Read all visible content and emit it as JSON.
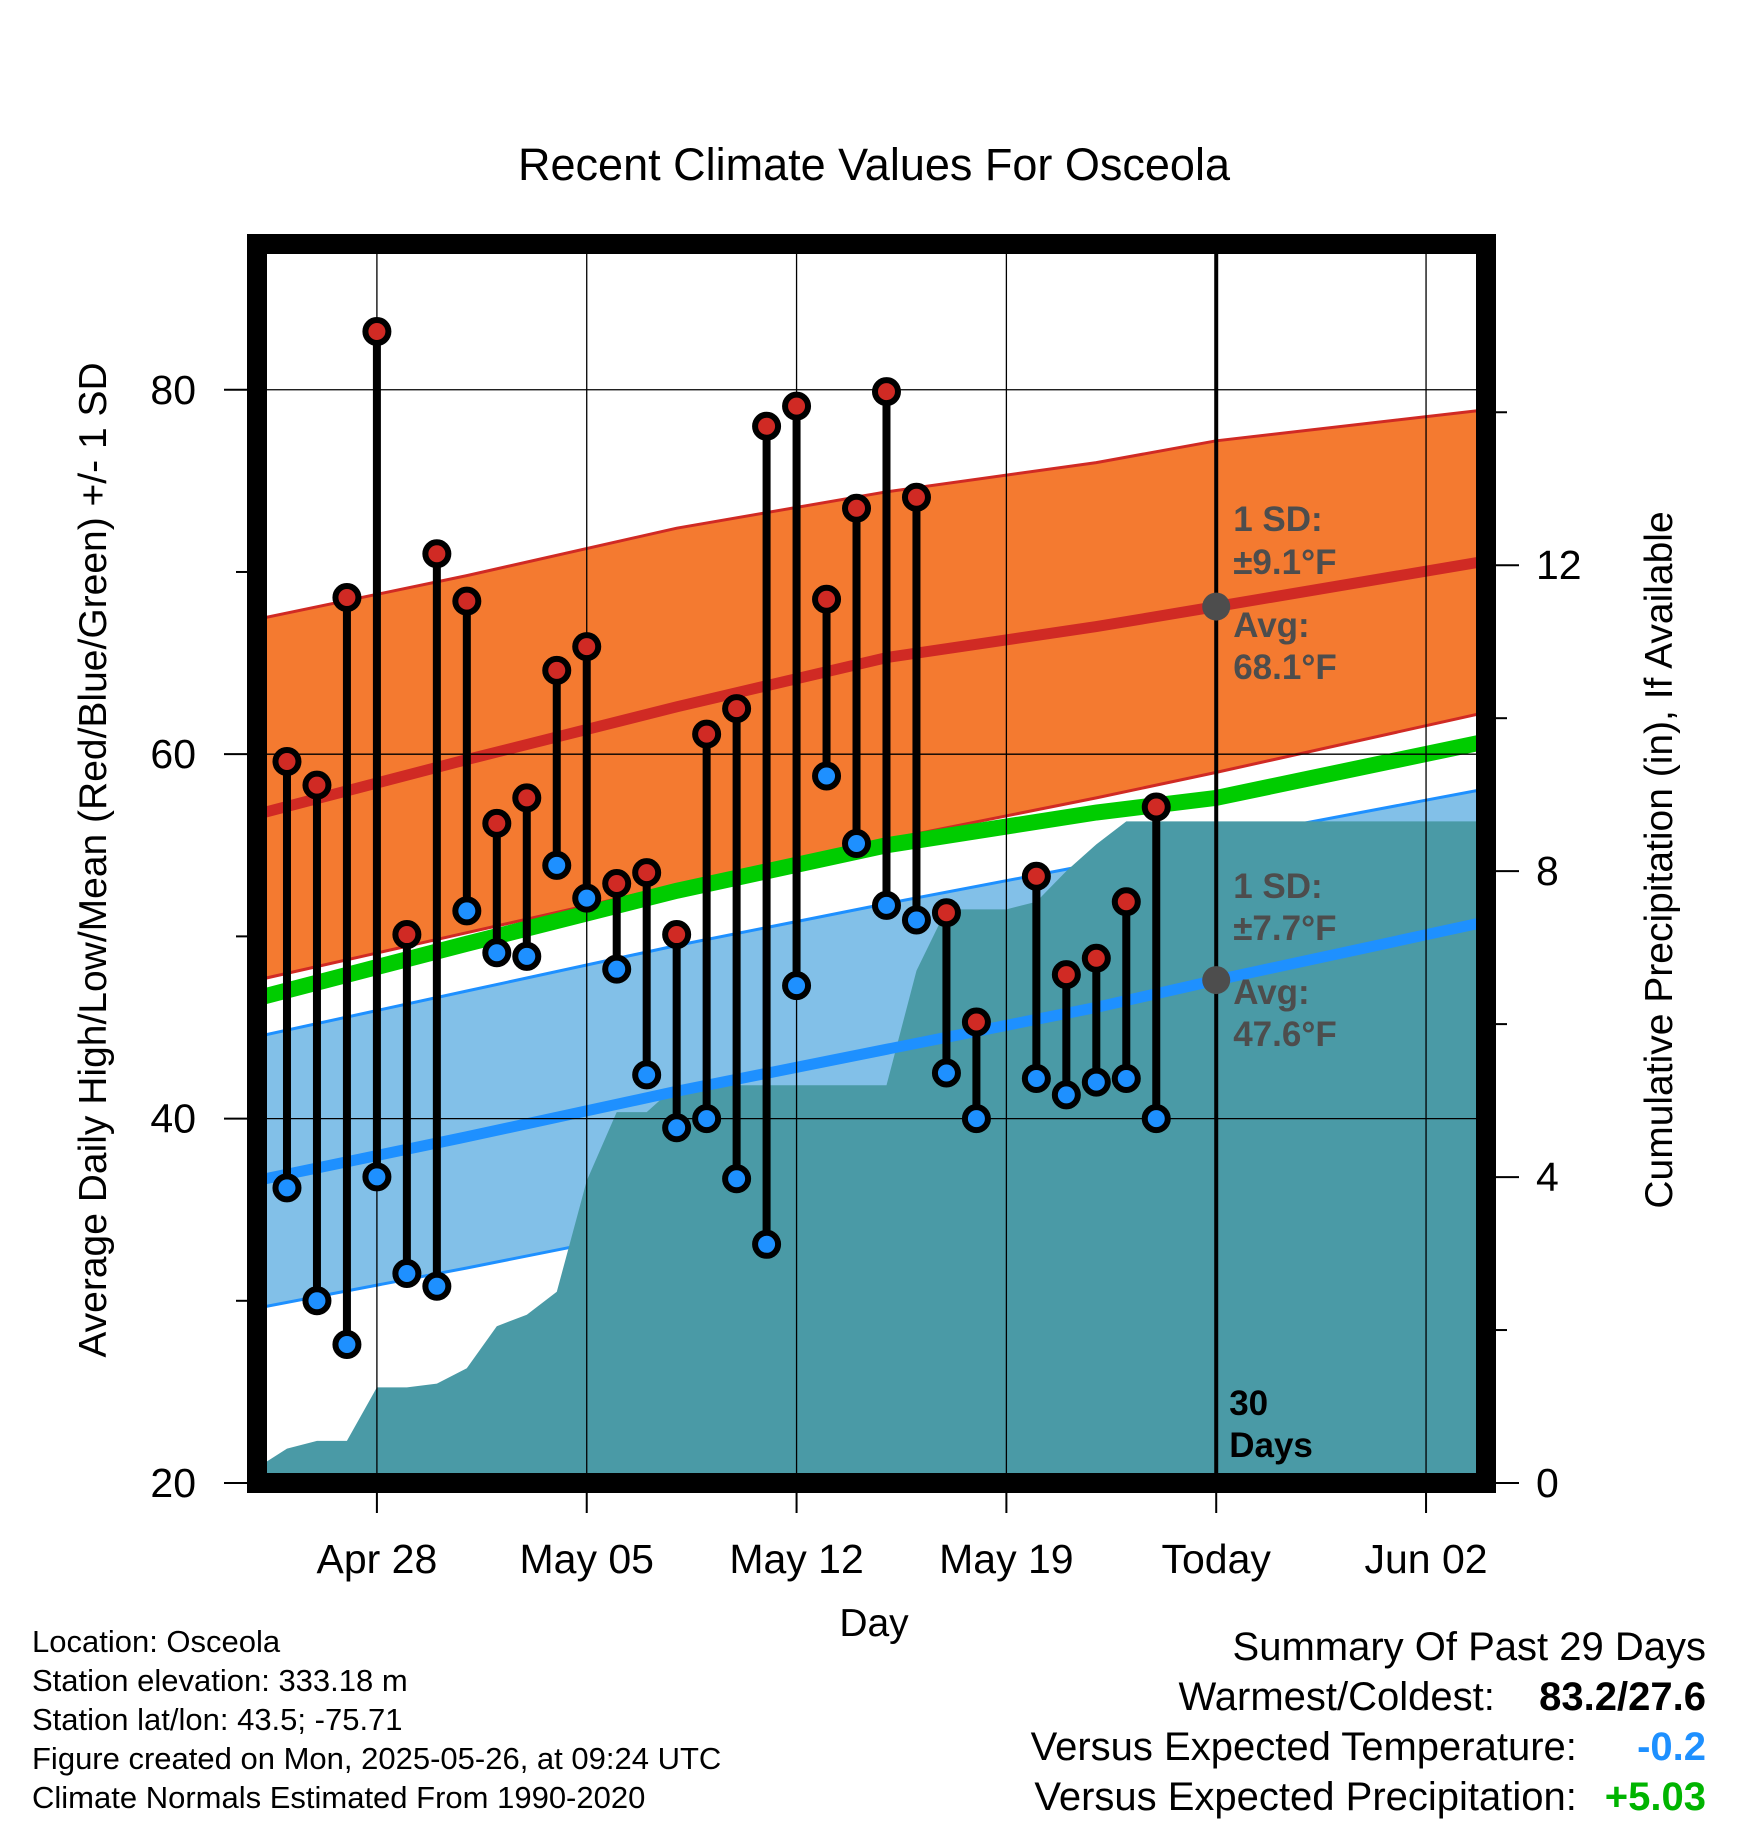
{
  "chart_data": {
    "type": "line",
    "title": "Recent Climate Values For Osceola",
    "xlabel": "Day",
    "ylabel": "Average Daily High/Low/Mean (Red/Blue/Green) +/- 1 SD",
    "y2label": "Cumulative Precipitation (in), If Available",
    "ylim": [
      20,
      88
    ],
    "y2lim": [
      0,
      16.2
    ],
    "yticks": [
      "20",
      "40",
      "60",
      "80"
    ],
    "y2ticks": [
      "0",
      "4",
      "8",
      "12"
    ],
    "x_range": [
      "2025-04-24",
      "2025-06-04"
    ],
    "xticks": [
      {
        "date": "2025-04-28",
        "label": "Apr 28"
      },
      {
        "date": "2025-05-05",
        "label": "May 05"
      },
      {
        "date": "2025-05-12",
        "label": "May 12"
      },
      {
        "date": "2025-05-19",
        "label": "May 19"
      },
      {
        "date": "2025-05-26",
        "label": "Today"
      },
      {
        "date": "2025-06-02",
        "label": "Jun 02"
      }
    ],
    "grid": true,
    "normal_high": {
      "mean": [
        [
          "2025-04-24",
          56.7
        ],
        [
          "2025-05-01",
          59.7
        ],
        [
          "2025-05-08",
          62.6
        ],
        [
          "2025-05-15",
          65.3
        ],
        [
          "2025-05-22",
          67.0
        ],
        [
          "2025-05-26",
          68.1
        ],
        [
          "2025-06-04",
          70.6
        ]
      ],
      "upper": [
        [
          "2025-04-24",
          67.4
        ],
        [
          "2025-05-01",
          69.8
        ],
        [
          "2025-05-08",
          72.4
        ],
        [
          "2025-05-15",
          74.4
        ],
        [
          "2025-05-22",
          76.0
        ],
        [
          "2025-05-26",
          77.2
        ],
        [
          "2025-06-04",
          78.9
        ]
      ],
      "lower": [
        [
          "2025-04-24",
          47.6
        ],
        [
          "2025-05-01",
          50.2
        ],
        [
          "2025-05-08",
          52.8
        ],
        [
          "2025-05-15",
          55.3
        ],
        [
          "2025-05-22",
          57.6
        ],
        [
          "2025-05-26",
          59.0
        ],
        [
          "2025-06-04",
          62.3
        ]
      ]
    },
    "normal_mean": [
      [
        "2025-04-24",
        46.6
      ],
      [
        "2025-05-01",
        49.6
      ],
      [
        "2025-05-08",
        52.5
      ],
      [
        "2025-05-15",
        55.0
      ],
      [
        "2025-05-22",
        56.8
      ],
      [
        "2025-05-26",
        57.6
      ],
      [
        "2025-06-04",
        60.7
      ]
    ],
    "normal_low": {
      "mean": [
        [
          "2025-04-24",
          36.6
        ],
        [
          "2025-05-01",
          39.0
        ],
        [
          "2025-05-08",
          41.5
        ],
        [
          "2025-05-15",
          43.8
        ],
        [
          "2025-05-22",
          46.1
        ],
        [
          "2025-05-26",
          47.6
        ],
        [
          "2025-06-04",
          50.8
        ]
      ],
      "upper": [
        [
          "2025-04-24",
          44.5
        ],
        [
          "2025-05-01",
          47.0
        ],
        [
          "2025-05-08",
          49.5
        ],
        [
          "2025-05-15",
          51.8
        ],
        [
          "2025-05-22",
          54.0
        ],
        [
          "2025-05-26",
          55.3
        ],
        [
          "2025-06-04",
          58.1
        ]
      ],
      "lower": [
        [
          "2025-04-24",
          29.6
        ],
        [
          "2025-05-01",
          31.8
        ],
        [
          "2025-05-08",
          34.1
        ],
        [
          "2025-05-15",
          36.5
        ],
        [
          "2025-05-22",
          38.8
        ],
        [
          "2025-05-26",
          40.0
        ],
        [
          "2025-06-04",
          43.6
        ]
      ]
    },
    "daily": [
      {
        "date": "2025-04-25",
        "high": 59.6,
        "low": 36.2
      },
      {
        "date": "2025-04-26",
        "high": 58.3,
        "low": 30.0
      },
      {
        "date": "2025-04-27",
        "high": 68.6,
        "low": 27.6
      },
      {
        "date": "2025-04-28",
        "high": 83.2,
        "low": 36.8
      },
      {
        "date": "2025-04-29",
        "high": 50.1,
        "low": 31.5
      },
      {
        "date": "2025-04-30",
        "high": 71.0,
        "low": 30.8
      },
      {
        "date": "2025-05-01",
        "high": 68.4,
        "low": 51.4
      },
      {
        "date": "2025-05-02",
        "high": 56.2,
        "low": 49.1
      },
      {
        "date": "2025-05-03",
        "high": 57.6,
        "low": 48.9
      },
      {
        "date": "2025-05-04",
        "high": 64.6,
        "low": 53.9
      },
      {
        "date": "2025-05-05",
        "high": 65.9,
        "low": 52.1
      },
      {
        "date": "2025-05-06",
        "high": 52.9,
        "low": 48.2
      },
      {
        "date": "2025-05-07",
        "high": 53.5,
        "low": 42.4
      },
      {
        "date": "2025-05-08",
        "high": 50.1,
        "low": 39.5
      },
      {
        "date": "2025-05-09",
        "high": 61.1,
        "low": 40.0
      },
      {
        "date": "2025-05-10",
        "high": 62.5,
        "low": 36.7
      },
      {
        "date": "2025-05-11",
        "high": 78.0,
        "low": 33.1
      },
      {
        "date": "2025-05-12",
        "high": 79.1,
        "low": 47.3
      },
      {
        "date": "2025-05-13",
        "high": 68.5,
        "low": 58.8
      },
      {
        "date": "2025-05-14",
        "high": 73.5,
        "low": 55.1
      },
      {
        "date": "2025-05-15",
        "high": 79.9,
        "low": 51.7
      },
      {
        "date": "2025-05-16",
        "high": 74.1,
        "low": 50.9
      },
      {
        "date": "2025-05-17",
        "high": 51.3,
        "low": 42.5
      },
      {
        "date": "2025-05-18",
        "high": 45.3,
        "low": 40.0
      },
      {
        "date": "2025-05-20",
        "high": 53.3,
        "low": 42.2
      },
      {
        "date": "2025-05-21",
        "high": 47.9,
        "low": 41.3
      },
      {
        "date": "2025-05-22",
        "high": 48.8,
        "low": 42.0
      },
      {
        "date": "2025-05-23",
        "high": 51.9,
        "low": 42.2
      },
      {
        "date": "2025-05-24",
        "high": 57.1,
        "low": 40.0
      }
    ],
    "precip_cumulative": [
      [
        "2025-04-24",
        0.0
      ],
      [
        "2025-04-24",
        0.2
      ],
      [
        "2025-04-25",
        0.45
      ],
      [
        "2025-04-26",
        0.55
      ],
      [
        "2025-04-27",
        0.55
      ],
      [
        "2025-04-28",
        1.25
      ],
      [
        "2025-04-29",
        1.25
      ],
      [
        "2025-04-30",
        1.3
      ],
      [
        "2025-05-01",
        1.5
      ],
      [
        "2025-05-02",
        2.05
      ],
      [
        "2025-05-03",
        2.2
      ],
      [
        "2025-05-04",
        2.5
      ],
      [
        "2025-05-05",
        3.95
      ],
      [
        "2025-05-06",
        4.85
      ],
      [
        "2025-05-07",
        4.85
      ],
      [
        "2025-05-08",
        5.2
      ],
      [
        "2025-05-09",
        5.2
      ],
      [
        "2025-05-10",
        5.2
      ],
      [
        "2025-05-11",
        5.2
      ],
      [
        "2025-05-12",
        5.2
      ],
      [
        "2025-05-13",
        5.2
      ],
      [
        "2025-05-14",
        5.2
      ],
      [
        "2025-05-15",
        5.2
      ],
      [
        "2025-05-16",
        6.7
      ],
      [
        "2025-05-17",
        7.5
      ],
      [
        "2025-05-18",
        7.5
      ],
      [
        "2025-05-19",
        7.5
      ],
      [
        "2025-05-20",
        7.6
      ],
      [
        "2025-05-21",
        8.0
      ],
      [
        "2025-05-22",
        8.35
      ],
      [
        "2025-05-23",
        8.65
      ],
      [
        "2025-05-26",
        8.65
      ],
      [
        "2025-06-04",
        8.65
      ]
    ],
    "today_date": "2025-05-26",
    "today_markers": {
      "high_avg": 68.1,
      "low_avg": 47.6
    },
    "annotations": {
      "high_sd_line1": "1 SD:",
      "high_sd_line2": "±9.1°F",
      "high_avg_line1": "Avg:",
      "high_avg_line2": "68.1°F",
      "low_sd_line1": "1 SD:",
      "low_sd_line2": "±7.7°F",
      "low_avg_line1": "Avg:",
      "low_avg_line2": "47.6°F",
      "days_line1": "30",
      "days_line2": "Days"
    },
    "colors": {
      "high_band": "#f47a30",
      "high_line": "#d02a24",
      "low_band": "#82c0e8",
      "low_line": "#1e90ff",
      "mean_line": "#00cc00",
      "precip": "#4a9aa6",
      "annotation": "#4d4d4d",
      "marker_high": "#d02a24",
      "marker_low": "#1e90ff"
    }
  },
  "info": {
    "location": "Location: Osceola",
    "elevation": "Station elevation: 333.18 m",
    "latlon": "Station lat/lon: 43.5; -75.71",
    "created": "Figure created on Mon, 2025-05-26, at 09:24 UTC",
    "normals": "Climate Normals Estimated From 1990-2020"
  },
  "summary": {
    "title": "Summary Of Past 29 Days",
    "warm_cold_label": "Warmest/Coldest:",
    "warm_cold_value": "83.2/27.6",
    "temp_label": "Versus Expected Temperature:",
    "temp_value": "-0.2",
    "temp_color": "#1e90ff",
    "precip_label": "Versus Expected Precipitation:",
    "precip_value": "+5.03",
    "precip_color": "#00b400"
  }
}
